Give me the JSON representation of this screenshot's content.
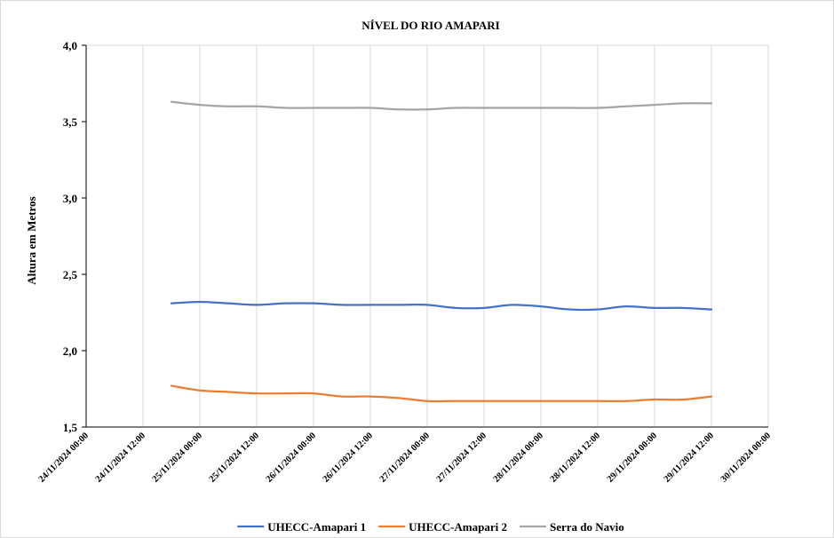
{
  "chart_data": {
    "type": "line",
    "title": "NÍVEL DO RIO AMAPARI",
    "xlabel": "",
    "ylabel": "Altura em Metros",
    "ylim": [
      1.5,
      4.0
    ],
    "yticks": [
      "1,5",
      "2,0",
      "2,5",
      "3,0",
      "3,5",
      "4,0"
    ],
    "ytick_values": [
      1.5,
      2.0,
      2.5,
      3.0,
      3.5,
      4.0
    ],
    "xticks": [
      "24/11/2024 00:00",
      "24/11/2024 12:00",
      "25/11/2024 00:00",
      "25/11/2024 12:00",
      "26/11/2024 00:00",
      "26/11/2024 12:00",
      "27/11/2024 00:00",
      "27/11/2024 12:00",
      "28/11/2024 00:00",
      "28/11/2024 12:00",
      "29/11/2024 00:00",
      "29/11/2024 12:00",
      "30/11/2024 00:00"
    ],
    "xlim": [
      "24/11/2024 00:00",
      "30/11/2024 00:00"
    ],
    "x": [
      "24/11/2024 18:00",
      "25/11/2024 00:00",
      "25/11/2024 06:00",
      "25/11/2024 12:00",
      "25/11/2024 18:00",
      "26/11/2024 00:00",
      "26/11/2024 06:00",
      "26/11/2024 12:00",
      "26/11/2024 18:00",
      "27/11/2024 00:00",
      "27/11/2024 06:00",
      "27/11/2024 12:00",
      "27/11/2024 18:00",
      "28/11/2024 00:00",
      "28/11/2024 06:00",
      "28/11/2024 12:00",
      "28/11/2024 18:00",
      "29/11/2024 00:00",
      "29/11/2024 06:00",
      "29/11/2024 12:00"
    ],
    "series": [
      {
        "name": "UHECC-Amapari 1",
        "color": "#4472C4",
        "values": [
          2.31,
          2.32,
          2.31,
          2.3,
          2.31,
          2.31,
          2.3,
          2.3,
          2.3,
          2.3,
          2.28,
          2.28,
          2.3,
          2.29,
          2.27,
          2.27,
          2.29,
          2.28,
          2.28,
          2.27
        ]
      },
      {
        "name": "UHECC-Amapari 2",
        "color": "#ED7D31",
        "values": [
          1.77,
          1.74,
          1.73,
          1.72,
          1.72,
          1.72,
          1.7,
          1.7,
          1.69,
          1.67,
          1.67,
          1.67,
          1.67,
          1.67,
          1.67,
          1.67,
          1.67,
          1.68,
          1.68,
          1.7
        ]
      },
      {
        "name": "Serra do Navio",
        "color": "#A5A5A5",
        "values": [
          3.63,
          3.61,
          3.6,
          3.6,
          3.59,
          3.59,
          3.59,
          3.59,
          3.58,
          3.58,
          3.59,
          3.59,
          3.59,
          3.59,
          3.59,
          3.59,
          3.6,
          3.61,
          3.62,
          3.62
        ]
      }
    ],
    "grid": {
      "x": true,
      "y": false
    },
    "legend": "bottom"
  }
}
